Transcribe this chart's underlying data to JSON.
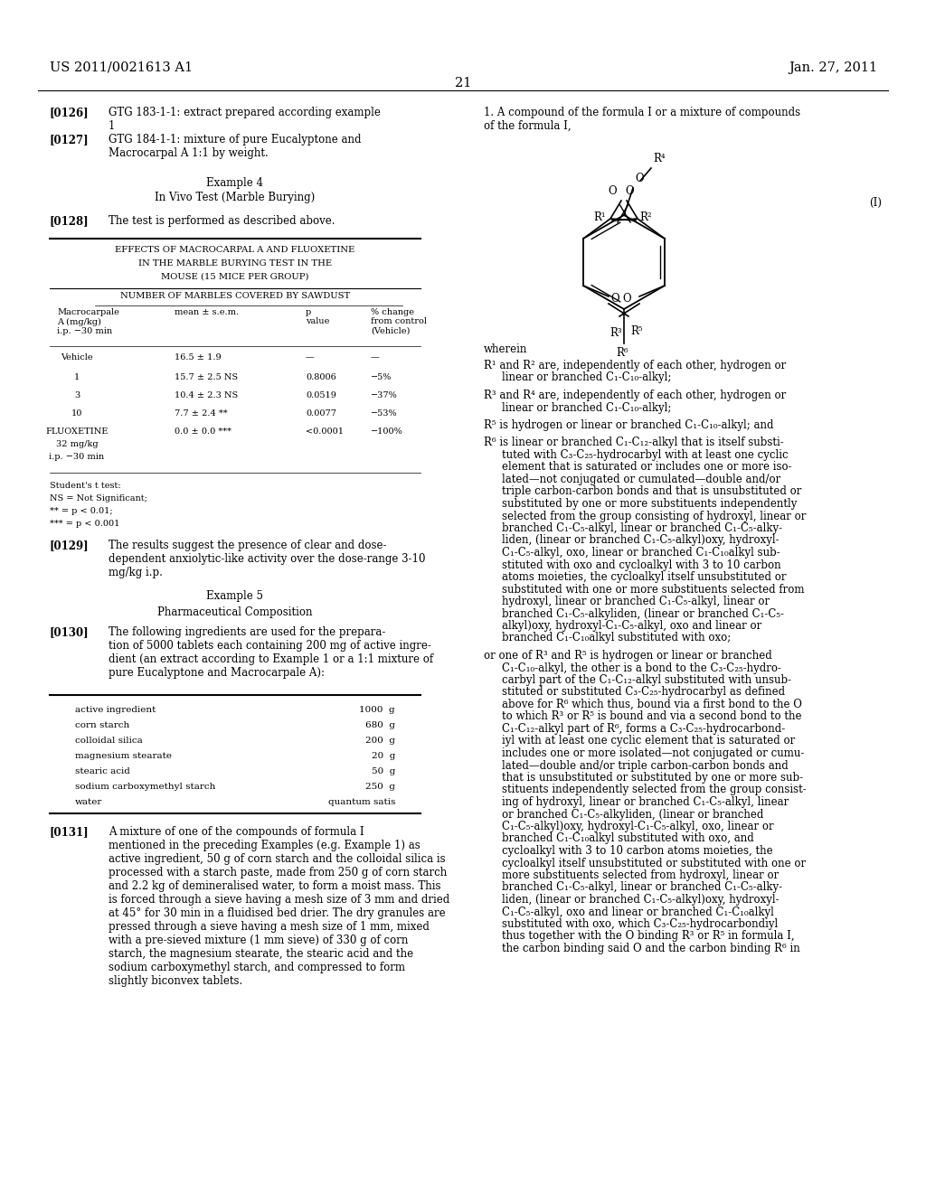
{
  "bg_color": "#ffffff",
  "header_left": "US 2011/0021613 A1",
  "header_right": "Jan. 27, 2011",
  "page_number": "21",
  "figsize": [
    10.24,
    13.2
  ],
  "dpi": 100
}
